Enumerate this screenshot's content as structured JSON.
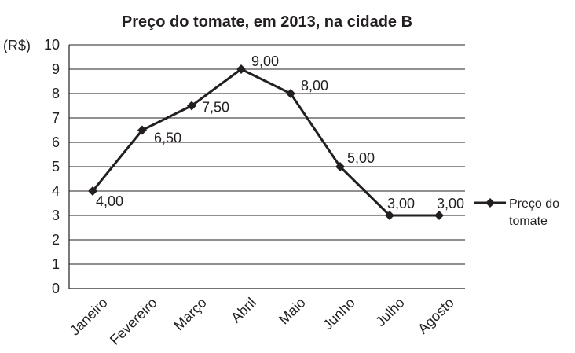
{
  "chart_data": {
    "type": "line",
    "title": "Preço do tomate, em 2013, na cidade B",
    "ylabel": "(R$)",
    "xlabel": "",
    "ylim": [
      0,
      10
    ],
    "yticks": [
      "0",
      "1",
      "2",
      "3",
      "4",
      "5",
      "6",
      "7",
      "8",
      "9",
      "10"
    ],
    "grid": true,
    "legend_position": "right",
    "categories": [
      "Janeiro",
      "Fevereiro",
      "Março",
      "Abril",
      "Maio",
      "Junho",
      "Julho",
      "Agosto"
    ],
    "series": [
      {
        "name": "Preço do tomate",
        "legend_lines": [
          "Preço do",
          "tomate"
        ],
        "values": [
          4.0,
          6.5,
          7.5,
          9.0,
          8.0,
          5.0,
          3.0,
          3.0
        ],
        "labels": [
          "4,00",
          "6,50",
          "7,50",
          "9,00",
          "8,00",
          "5,00",
          "3,00",
          "3,00"
        ],
        "color": "#231f20",
        "marker": "diamond"
      }
    ]
  }
}
